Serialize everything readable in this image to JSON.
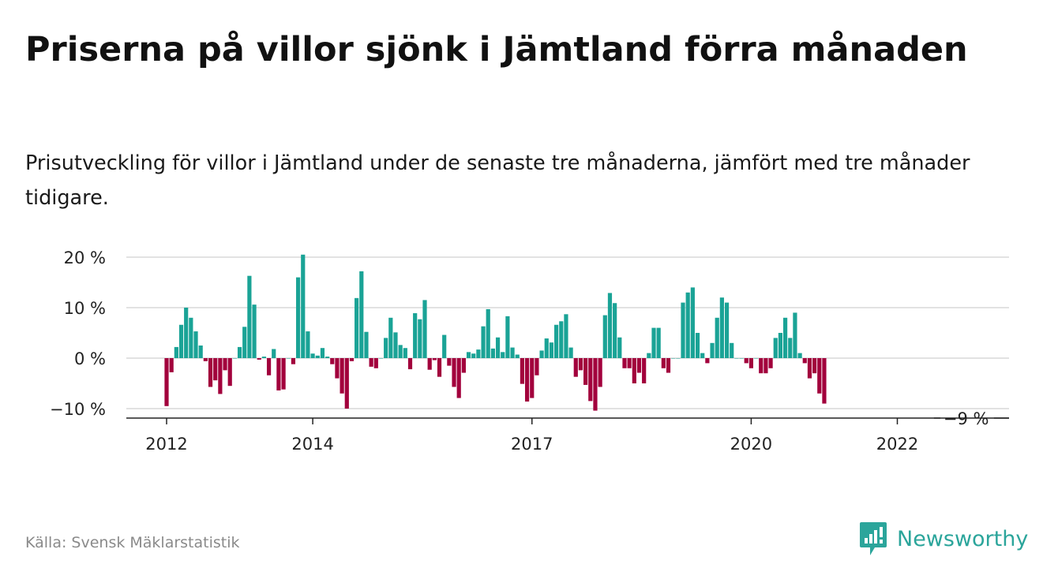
{
  "title": "Priserna på villor sjönk i Jämtland förra månaden",
  "subtitle": "Prisutveckling för villor i Jämtland under de senaste tre månaderna, jämfört med tre månader tidigare.",
  "source": "Källa: Svensk Mäklarstatistik",
  "brand": {
    "name": "Newsworthy",
    "icon": "newsworthy-logo-icon"
  },
  "colors": {
    "positive": "#1aa396",
    "negative": "#a2003c",
    "grid": "#d9d9d9",
    "axis": "#222222"
  },
  "chart_data": {
    "type": "bar",
    "ylim": [
      -10.5,
      21
    ],
    "yticks": [
      {
        "value": 20,
        "label": "20 %"
      },
      {
        "value": 10,
        "label": "10 %"
      },
      {
        "value": 0,
        "label": "0 %"
      },
      {
        "value": -10,
        "label": "−10 %"
      }
    ],
    "xticks": [
      {
        "label": "2012",
        "index": 0
      },
      {
        "label": "2014",
        "index": 30
      },
      {
        "label": "2017",
        "index": 75
      },
      {
        "label": "2020",
        "index": 120
      },
      {
        "label": "2022",
        "index": 150
      }
    ],
    "grid": true,
    "annotation": {
      "label": "−9 %",
      "index": 164
    },
    "values": [
      -9.5,
      -2.8,
      2.2,
      6.6,
      10,
      8,
      5.3,
      2.5,
      -0.6,
      -5.7,
      -4.4,
      -7.1,
      -2.4,
      -5.5,
      0,
      2.2,
      6.2,
      16.3,
      10.6,
      -0.3,
      0.3,
      -3.4,
      1.8,
      -6.4,
      -6.2,
      0,
      -1.2,
      16,
      20.5,
      5.3,
      0.9,
      0.5,
      2,
      0.3,
      -1.2,
      -4,
      -7,
      -10,
      -0.6,
      11.9,
      17.2,
      5.2,
      -1.7,
      -2,
      0,
      4,
      8,
      5.1,
      2.6,
      2,
      -2.2,
      8.9,
      7.7,
      11.5,
      -2.3,
      -0.4,
      -3.7,
      4.6,
      -1.5,
      -5.7,
      -7.9,
      -2.9,
      1.2,
      0.9,
      1.7,
      6.3,
      9.7,
      1.9,
      4.1,
      1.2,
      8.3,
      2.1,
      0.7,
      -5.1,
      -8.6,
      -7.9,
      -3.4,
      1.5,
      3.9,
      3.1,
      6.6,
      7.3,
      8.7,
      2.1,
      -3.7,
      -2.4,
      -5.3,
      -8.5,
      -10.4,
      -5.7,
      8.5,
      12.9,
      10.9,
      4.1,
      -2,
      -2,
      -5,
      -2.9,
      -5,
      1,
      6,
      6,
      -2,
      -2.9,
      0,
      0,
      11,
      13,
      14,
      5,
      1,
      -1,
      3,
      8,
      12,
      11,
      3,
      0,
      0,
      -1,
      -2,
      0,
      -3,
      -3,
      -2,
      4,
      5,
      8,
      4,
      9,
      1,
      -1,
      -4,
      -3,
      -7,
      -9
    ]
  }
}
